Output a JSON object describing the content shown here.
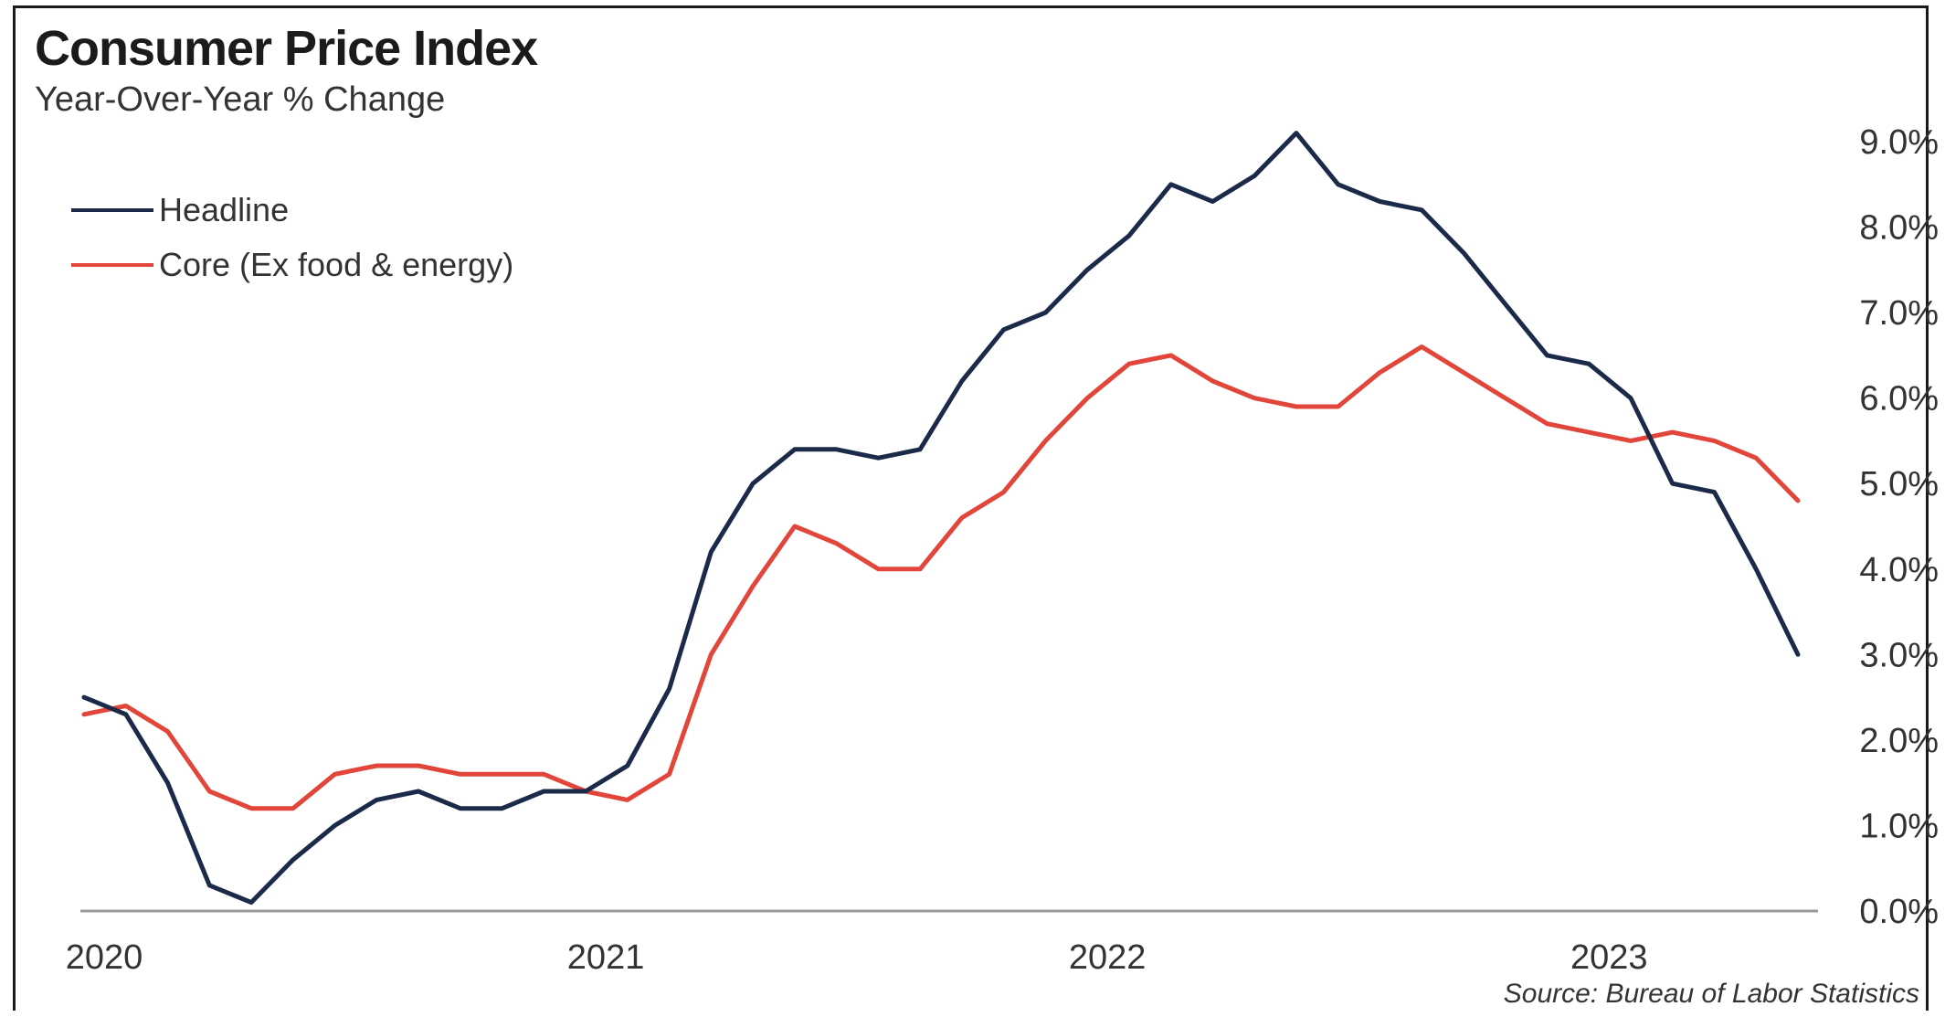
{
  "header": {
    "title": "Consumer Price Index",
    "subtitle": "Year-Over-Year  % Change"
  },
  "source": "Source:  Bureau of Labor Statistics",
  "colors": {
    "headline": "#1c2a4a",
    "core": "#e2453a",
    "axis": "#9a9a9a"
  },
  "chart_data": {
    "type": "line",
    "title": "Consumer Price Index",
    "subtitle": "Year-Over-Year  % Change",
    "xlabel": "",
    "ylabel": "",
    "x_start": "2020-01",
    "x_ticks": [
      "2020",
      "2021",
      "2022",
      "2023"
    ],
    "y_ticks": [
      "0.0%",
      "1.0%",
      "2.0%",
      "3.0%",
      "4.0%",
      "5.0%",
      "6.0%",
      "7.0%",
      "8.0%",
      "9.0%"
    ],
    "ylim": [
      0,
      9
    ],
    "y_axis_side": "right",
    "grid": false,
    "legend_position": "top-left",
    "series": [
      {
        "name": "Headline",
        "color_key": "headline",
        "values": [
          2.5,
          2.3,
          1.5,
          0.3,
          0.1,
          0.6,
          1.0,
          1.3,
          1.4,
          1.2,
          1.2,
          1.4,
          1.4,
          1.7,
          2.6,
          4.2,
          5.0,
          5.4,
          5.4,
          5.3,
          5.4,
          6.2,
          6.8,
          7.0,
          7.5,
          7.9,
          8.5,
          8.3,
          8.6,
          9.1,
          8.5,
          8.3,
          8.2,
          7.7,
          7.1,
          6.5,
          6.4,
          6.0,
          5.0,
          4.9,
          4.0,
          3.0
        ]
      },
      {
        "name": "Core (Ex food & energy)",
        "color_key": "core",
        "values": [
          2.3,
          2.4,
          2.1,
          1.4,
          1.2,
          1.2,
          1.6,
          1.7,
          1.7,
          1.6,
          1.6,
          1.6,
          1.4,
          1.3,
          1.6,
          3.0,
          3.8,
          4.5,
          4.3,
          4.0,
          4.0,
          4.6,
          4.9,
          5.5,
          6.0,
          6.4,
          6.5,
          6.2,
          6.0,
          5.9,
          5.9,
          6.3,
          6.6,
          6.3,
          6.0,
          5.7,
          5.6,
          5.5,
          5.6,
          5.5,
          5.3,
          4.8
        ]
      }
    ]
  }
}
